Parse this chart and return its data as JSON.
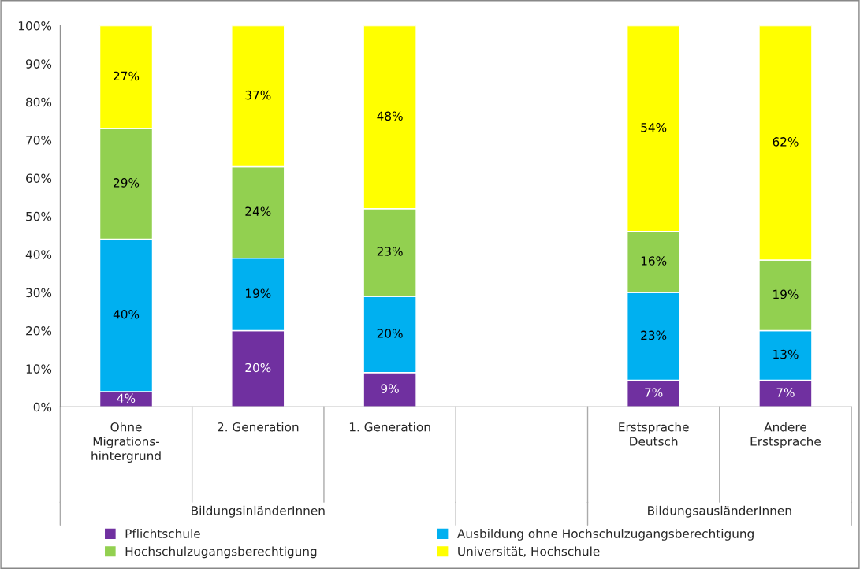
{
  "chart_data": {
    "type": "bar",
    "stacked": true,
    "categories": [
      "Ohne\nMigrations-\nhintergrund",
      "2. Generation",
      "1. Generation",
      null,
      "Erstsprache\nDeutsch",
      "Andere\nErstsprache"
    ],
    "series": [
      {
        "name": "Pflichtschule",
        "color": "#7030a0",
        "values": [
          4,
          20,
          9,
          null,
          7,
          7
        ],
        "value_labels": [
          "4%",
          "20%",
          "9%",
          null,
          "7%",
          "7%"
        ]
      },
      {
        "name": "Ausbildung ohne Hochschulzugangsberechtigung",
        "color": "#00b0f0",
        "values": [
          40,
          19,
          20,
          null,
          23,
          13
        ],
        "value_labels": [
          "40%",
          "19%",
          "20%",
          null,
          "23%",
          "13%"
        ]
      },
      {
        "name": "Hochschulzugangsberechtigung",
        "color": "#92d050",
        "values": [
          29,
          24,
          23,
          null,
          16,
          18.5
        ],
        "value_labels": [
          "29%",
          "24%",
          "23%",
          null,
          "16%",
          "19%"
        ]
      },
      {
        "name": "Universität, Hochschule",
        "color": "#ffff00",
        "values": [
          27,
          37,
          48,
          null,
          54,
          61.5
        ],
        "value_labels": [
          "27%",
          "37%",
          "48%",
          null,
          "54%",
          "62%"
        ]
      }
    ],
    "annotations": [
      "BildungsinländerInnen",
      "BildungsausländerInnen"
    ],
    "ylim": [
      0,
      100
    ],
    "yticks": [
      {
        "value": 0,
        "label": "0%"
      },
      {
        "value": 10,
        "label": "10%"
      },
      {
        "value": 20,
        "label": "20%"
      },
      {
        "value": 30,
        "label": "30%"
      },
      {
        "value": 40,
        "label": "40%"
      },
      {
        "value": 50,
        "label": "50%"
      },
      {
        "value": 60,
        "label": "60%"
      },
      {
        "value": 70,
        "label": "70%"
      },
      {
        "value": 80,
        "label": "80%"
      },
      {
        "value": 90,
        "label": "90%"
      },
      {
        "value": 100,
        "label": "100%"
      }
    ],
    "grid": false,
    "legend": "bottom"
  }
}
